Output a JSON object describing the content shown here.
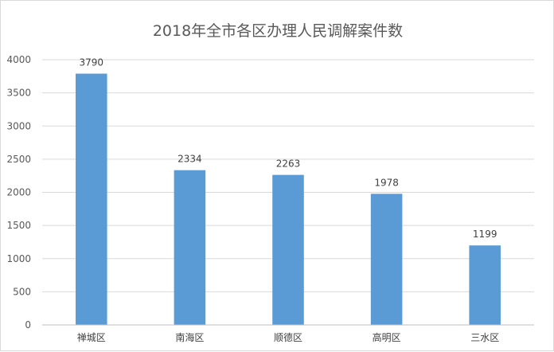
{
  "chart_data": {
    "type": "bar",
    "title": "2018年全市各区办理人民调解案件数",
    "categories": [
      "禅城区",
      "南海区",
      "顺德区",
      "高明区",
      "三水区"
    ],
    "values": [
      3790,
      2334,
      2263,
      1978,
      1199
    ],
    "data_labels": [
      "3790",
      "2334",
      "2263",
      "1978",
      "1199"
    ],
    "ylim": [
      0,
      4000
    ],
    "yticks": [
      0,
      500,
      1000,
      1500,
      2000,
      2500,
      3000,
      3500,
      4000
    ],
    "grid": true,
    "legend": "none",
    "bar_color": "#5b9bd5"
  }
}
